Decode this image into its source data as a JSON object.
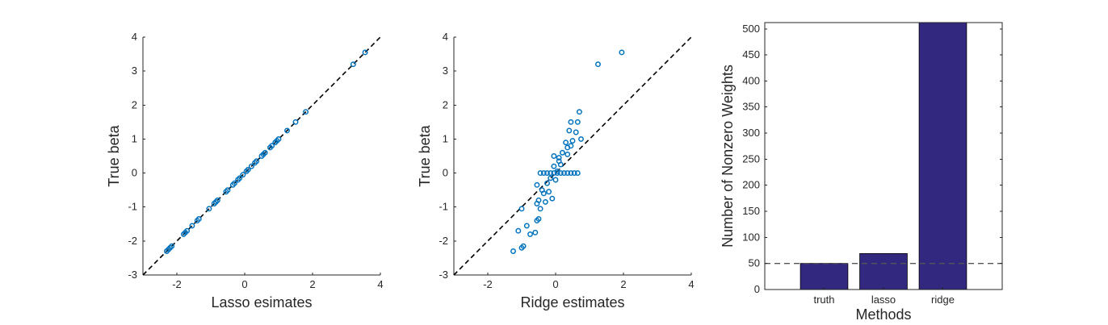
{
  "chart_data": [
    {
      "type": "scatter",
      "xlabel": "Lasso esimates",
      "ylabel": "True beta",
      "xlim": [
        -3,
        4
      ],
      "ylim": [
        -3,
        4
      ],
      "xticks": [
        -2,
        0,
        2,
        4
      ],
      "yticks": [
        -3,
        -2,
        -1,
        0,
        1,
        2,
        3,
        4
      ],
      "marker_color": "#0072BD",
      "reference_line": {
        "style": "dashed",
        "color": "#000000",
        "from": [
          -3,
          -3
        ],
        "to": [
          4,
          4
        ]
      },
      "points": [
        {
          "x": -2.3,
          "y": -2.3
        },
        {
          "x": -2.25,
          "y": -2.25
        },
        {
          "x": -2.2,
          "y": -2.2
        },
        {
          "x": -2.15,
          "y": -2.15
        },
        {
          "x": -1.8,
          "y": -1.8
        },
        {
          "x": -1.75,
          "y": -1.75
        },
        {
          "x": -1.7,
          "y": -1.7
        },
        {
          "x": -1.55,
          "y": -1.55
        },
        {
          "x": -1.4,
          "y": -1.4
        },
        {
          "x": -1.35,
          "y": -1.35
        },
        {
          "x": -1.05,
          "y": -1.05
        },
        {
          "x": -0.9,
          "y": -0.9
        },
        {
          "x": -0.85,
          "y": -0.85
        },
        {
          "x": -0.8,
          "y": -0.8
        },
        {
          "x": -0.55,
          "y": -0.55
        },
        {
          "x": -0.5,
          "y": -0.5
        },
        {
          "x": -0.35,
          "y": -0.35
        },
        {
          "x": -0.3,
          "y": -0.3
        },
        {
          "x": -0.2,
          "y": -0.2
        },
        {
          "x": -0.15,
          "y": -0.15
        },
        {
          "x": -0.05,
          "y": -0.05
        },
        {
          "x": 0.05,
          "y": 0.05
        },
        {
          "x": 0.1,
          "y": 0.1
        },
        {
          "x": 0.2,
          "y": 0.2
        },
        {
          "x": 0.3,
          "y": 0.3
        },
        {
          "x": 0.35,
          "y": 0.35
        },
        {
          "x": 0.5,
          "y": 0.5
        },
        {
          "x": 0.55,
          "y": 0.55
        },
        {
          "x": 0.6,
          "y": 0.6
        },
        {
          "x": 0.75,
          "y": 0.75
        },
        {
          "x": 0.8,
          "y": 0.8
        },
        {
          "x": 0.9,
          "y": 0.9
        },
        {
          "x": 0.95,
          "y": 0.95
        },
        {
          "x": 1.0,
          "y": 1.0
        },
        {
          "x": 1.25,
          "y": 1.25
        },
        {
          "x": 1.5,
          "y": 1.5
        },
        {
          "x": 1.8,
          "y": 1.8
        },
        {
          "x": 3.2,
          "y": 3.2
        },
        {
          "x": 3.55,
          "y": 3.55
        }
      ]
    },
    {
      "type": "scatter",
      "xlabel": "Ridge estimates",
      "ylabel": "True beta",
      "xlim": [
        -3,
        4
      ],
      "ylim": [
        -3,
        4
      ],
      "xticks": [
        -2,
        0,
        2,
        4
      ],
      "yticks": [
        -3,
        -2,
        -1,
        0,
        1,
        2,
        3,
        4
      ],
      "marker_color": "#0072BD",
      "reference_line": {
        "style": "dashed",
        "color": "#000000",
        "from": [
          -3,
          -3
        ],
        "to": [
          4,
          4
        ]
      },
      "points": [
        {
          "x": -1.25,
          "y": -2.3
        },
        {
          "x": -1.0,
          "y": -2.2
        },
        {
          "x": -0.95,
          "y": -2.15
        },
        {
          "x": -1.1,
          "y": -1.7
        },
        {
          "x": -0.85,
          "y": -1.55
        },
        {
          "x": -0.75,
          "y": -1.8
        },
        {
          "x": -0.6,
          "y": -1.75
        },
        {
          "x": -0.55,
          "y": -1.4
        },
        {
          "x": -0.5,
          "y": -1.35
        },
        {
          "x": -1.0,
          "y": -1.05
        },
        {
          "x": -0.55,
          "y": -0.9
        },
        {
          "x": -0.5,
          "y": -0.8
        },
        {
          "x": -0.45,
          "y": -1.05
        },
        {
          "x": -0.3,
          "y": -0.85
        },
        {
          "x": -0.55,
          "y": -0.35
        },
        {
          "x": -0.4,
          "y": -0.5
        },
        {
          "x": -0.2,
          "y": -0.55
        },
        {
          "x": -0.25,
          "y": -0.3
        },
        {
          "x": -0.1,
          "y": -0.75
        },
        {
          "x": -0.15,
          "y": -0.15
        },
        {
          "x": 0.0,
          "y": -0.2
        },
        {
          "x": 0.05,
          "y": 0.05
        },
        {
          "x": -0.05,
          "y": 0.2
        },
        {
          "x": 0.1,
          "y": 0.35
        },
        {
          "x": 0.15,
          "y": 0.25
        },
        {
          "x": -0.05,
          "y": 0.5
        },
        {
          "x": 0.1,
          "y": 0.45
        },
        {
          "x": 0.2,
          "y": 0.6
        },
        {
          "x": 0.35,
          "y": 0.75
        },
        {
          "x": 0.3,
          "y": 0.9
        },
        {
          "x": 0.45,
          "y": 0.8
        },
        {
          "x": 0.5,
          "y": 0.95
        },
        {
          "x": 0.75,
          "y": 1.0
        },
        {
          "x": 0.6,
          "y": 1.2
        },
        {
          "x": 0.4,
          "y": 1.25
        },
        {
          "x": 0.65,
          "y": 1.5
        },
        {
          "x": 0.45,
          "y": 1.5
        },
        {
          "x": 0.7,
          "y": 1.8
        },
        {
          "x": 1.25,
          "y": 3.2
        },
        {
          "x": 1.95,
          "y": 3.55
        },
        {
          "x": 0.35,
          "y": 0.55
        },
        {
          "x": -0.35,
          "y": -0.6
        },
        {
          "x": -0.45,
          "y": 0
        },
        {
          "x": -0.35,
          "y": 0
        },
        {
          "x": -0.25,
          "y": 0
        },
        {
          "x": -0.15,
          "y": 0
        },
        {
          "x": -0.05,
          "y": 0
        },
        {
          "x": 0.05,
          "y": 0
        },
        {
          "x": 0.15,
          "y": 0
        },
        {
          "x": 0.25,
          "y": 0
        },
        {
          "x": 0.35,
          "y": 0
        },
        {
          "x": 0.45,
          "y": 0
        },
        {
          "x": 0.55,
          "y": 0
        },
        {
          "x": 0.65,
          "y": 0
        }
      ]
    },
    {
      "type": "bar",
      "xlabel": "Methods",
      "ylabel": "Number of Nonzero Weights",
      "categories": [
        "truth",
        "lasso",
        "ridge"
      ],
      "values": [
        50,
        69,
        512
      ],
      "ylim": [
        0,
        512
      ],
      "yticks": [
        0,
        50,
        100,
        150,
        200,
        250,
        300,
        350,
        400,
        450,
        500
      ],
      "bar_color": "#33287F",
      "reference_line": {
        "style": "dashed",
        "color": "#555555",
        "y": 50
      }
    }
  ]
}
